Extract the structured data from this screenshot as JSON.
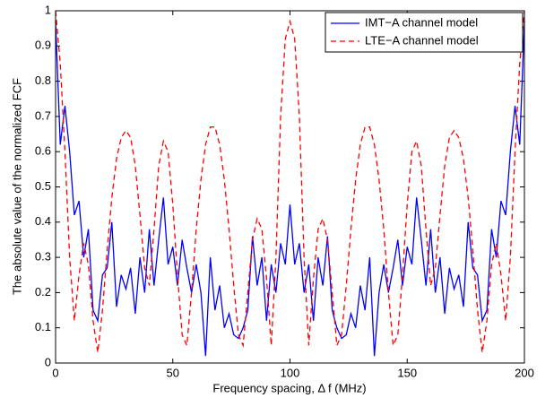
{
  "chart_data": {
    "type": "line",
    "xlabel": "Frequency spacing, Δ f (MHz)",
    "ylabel": "The absolute value of the normalized FCF",
    "x": [
      0,
      2,
      4,
      6,
      8,
      10,
      12,
      14,
      16,
      18,
      20,
      22,
      24,
      26,
      28,
      30,
      32,
      34,
      36,
      38,
      40,
      42,
      44,
      46,
      48,
      50,
      52,
      54,
      56,
      58,
      60,
      62,
      64,
      66,
      68,
      70,
      72,
      74,
      76,
      78,
      80,
      82,
      84,
      86,
      88,
      90,
      92,
      94,
      96,
      98,
      100,
      102,
      104,
      106,
      108,
      110,
      112,
      114,
      116,
      118,
      120,
      122,
      124,
      126,
      128,
      130,
      132,
      134,
      136,
      138,
      140,
      142,
      144,
      146,
      148,
      150,
      152,
      154,
      156,
      158,
      160,
      162,
      164,
      166,
      168,
      170,
      172,
      174,
      176,
      178,
      180,
      182,
      184,
      186,
      188,
      190,
      192,
      194,
      196,
      198,
      200
    ],
    "series": [
      {
        "name": "IMT−A channel model",
        "color": "#0000ff",
        "dash": "solid",
        "values": [
          0.97,
          0.62,
          0.73,
          0.6,
          0.42,
          0.46,
          0.3,
          0.38,
          0.15,
          0.12,
          0.25,
          0.27,
          0.4,
          0.16,
          0.25,
          0.21,
          0.27,
          0.14,
          0.3,
          0.2,
          0.38,
          0.22,
          0.35,
          0.47,
          0.28,
          0.33,
          0.22,
          0.35,
          0.27,
          0.2,
          0.28,
          0.2,
          0.02,
          0.3,
          0.15,
          0.22,
          0.1,
          0.14,
          0.08,
          0.07,
          0.1,
          0.15,
          0.36,
          0.22,
          0.3,
          0.12,
          0.28,
          0.2,
          0.34,
          0.28,
          0.45,
          0.28,
          0.34,
          0.2,
          0.28,
          0.12,
          0.3,
          0.22,
          0.36,
          0.15,
          0.1,
          0.07,
          0.08,
          0.14,
          0.1,
          0.22,
          0.15,
          0.3,
          0.02,
          0.2,
          0.28,
          0.2,
          0.27,
          0.35,
          0.22,
          0.33,
          0.28,
          0.47,
          0.35,
          0.22,
          0.38,
          0.2,
          0.3,
          0.14,
          0.27,
          0.21,
          0.25,
          0.16,
          0.4,
          0.27,
          0.25,
          0.12,
          0.15,
          0.38,
          0.3,
          0.46,
          0.42,
          0.6,
          0.73,
          0.62,
          0.97
        ]
      },
      {
        "name": "LTE−A channel model",
        "color": "#ff0000",
        "dash": "dashed",
        "values": [
          1.0,
          0.85,
          0.6,
          0.3,
          0.12,
          0.25,
          0.34,
          0.28,
          0.12,
          0.03,
          0.15,
          0.32,
          0.47,
          0.58,
          0.64,
          0.66,
          0.64,
          0.56,
          0.42,
          0.27,
          0.22,
          0.38,
          0.56,
          0.63,
          0.6,
          0.45,
          0.25,
          0.08,
          0.05,
          0.2,
          0.38,
          0.52,
          0.62,
          0.67,
          0.67,
          0.62,
          0.52,
          0.38,
          0.22,
          0.08,
          0.05,
          0.2,
          0.35,
          0.41,
          0.38,
          0.24,
          0.05,
          0.3,
          0.7,
          0.92,
          0.97,
          0.92,
          0.7,
          0.3,
          0.05,
          0.24,
          0.38,
          0.41,
          0.35,
          0.2,
          0.05,
          0.08,
          0.22,
          0.38,
          0.52,
          0.62,
          0.67,
          0.67,
          0.62,
          0.52,
          0.38,
          0.2,
          0.05,
          0.08,
          0.25,
          0.45,
          0.6,
          0.63,
          0.56,
          0.38,
          0.22,
          0.27,
          0.42,
          0.56,
          0.64,
          0.66,
          0.64,
          0.58,
          0.47,
          0.32,
          0.15,
          0.03,
          0.12,
          0.28,
          0.34,
          0.25,
          0.12,
          0.3,
          0.6,
          0.85,
          1.0
        ]
      }
    ],
    "xlim": [
      0,
      200
    ],
    "xticks": [
      0,
      50,
      100,
      150,
      200
    ],
    "ylim": [
      0,
      1
    ],
    "yticks": [
      0,
      0.1,
      0.2,
      0.3,
      0.4,
      0.5,
      0.6,
      0.7,
      0.8,
      0.9,
      1
    ],
    "grid": false,
    "legend": "upper right"
  }
}
